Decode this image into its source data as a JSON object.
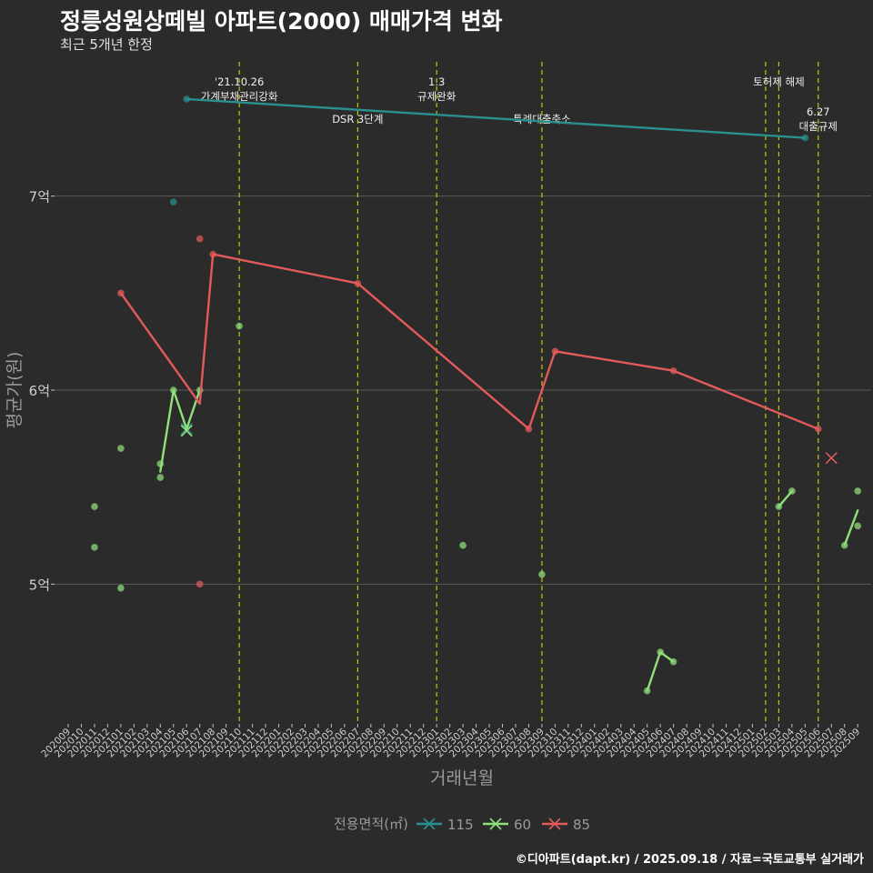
{
  "header": {
    "title": "정릉성원상떼빌 아파트(2000) 매매가격 변화",
    "subtitle": "최근 5개년 한정"
  },
  "footer": {
    "caption": "©디아파트(dapt.kr) / 2025.09.18 / 자료=국토교통부 실거래가"
  },
  "colors": {
    "background": "#2b2b2b",
    "grid": "#5a5a5a",
    "vline": "#d4d400",
    "s115": "#2a8f8f",
    "s60": "#8fe07a",
    "s85": "#e35a5a",
    "axis_text": "#bfbfbf"
  },
  "chart_data": {
    "type": "line",
    "title": "정릉성원상떼빌 아파트(2000) 매매가격 변화",
    "subtitle": "최근 5개년 한정",
    "xlabel": "거래년월",
    "ylabel": "평균가(원)",
    "ylim": [
      4.28,
      7.72
    ],
    "y_ticks": [
      {
        "value": 5,
        "label": "5억"
      },
      {
        "value": 6,
        "label": "6억"
      },
      {
        "value": 7,
        "label": "7억"
      }
    ],
    "categories": [
      "202009",
      "202010",
      "202011",
      "202012",
      "202101",
      "202102",
      "202103",
      "202104",
      "202105",
      "202106",
      "202107",
      "202108",
      "202109",
      "202110",
      "202111",
      "202112",
      "202201",
      "202202",
      "202203",
      "202204",
      "202205",
      "202206",
      "202207",
      "202208",
      "202209",
      "202210",
      "202211",
      "202212",
      "202301",
      "202302",
      "202303",
      "202304",
      "202305",
      "202306",
      "202307",
      "202308",
      "202309",
      "202310",
      "202311",
      "202312",
      "202401",
      "202402",
      "202403",
      "202404",
      "202405",
      "202406",
      "202407",
      "202408",
      "202409",
      "202410",
      "202411",
      "202412",
      "202501",
      "202502",
      "202503",
      "202504",
      "202505",
      "202506",
      "202507",
      "202508",
      "202509"
    ],
    "legend": {
      "title": "전용면적(㎡)",
      "entries": [
        "115",
        "60",
        "85"
      ],
      "placement": "bottom"
    },
    "events": [
      {
        "month": "202110",
        "label": "'21.10.26 가계부채관리강화",
        "lines": [
          "'21.10.26",
          "가계부채관리강화"
        ],
        "row": "top"
      },
      {
        "month": "202207",
        "label": "DSR 3단계",
        "lines": [
          "DSR 3단계"
        ],
        "row": "low"
      },
      {
        "month": "202301",
        "label": "1.3 규제완화",
        "lines": [
          "1.3",
          "규제완화"
        ],
        "row": "top"
      },
      {
        "month": "202309",
        "label": "특례대출축소",
        "lines": [
          "특례대출축소"
        ],
        "row": "low"
      },
      {
        "month": "202502",
        "label": "",
        "lines": [],
        "row": "top"
      },
      {
        "month": "202503",
        "label": "토허제 해제",
        "lines": [
          "토허제 해제"
        ],
        "row": "top"
      },
      {
        "month": "202506",
        "label": "6.27 대출규제",
        "lines": [
          "6.27",
          "대출규제"
        ],
        "row": "mid"
      }
    ],
    "series": [
      {
        "name": "115",
        "color_key": "s115",
        "line": [
          [
            "202106",
            7.5
          ],
          [
            "202505",
            7.3
          ]
        ],
        "points": [
          [
            "202105",
            6.97
          ],
          [
            "202106",
            7.5
          ],
          [
            "202505",
            7.3
          ]
        ],
        "cross": [
          [
            "202106",
            5.8
          ]
        ]
      },
      {
        "name": "60",
        "color_key": "s60",
        "line_segments": [
          [
            [
              "202104",
              5.58
            ],
            [
              "202105",
              6.0
            ],
            [
              "202106",
              5.8
            ],
            [
              "202107",
              6.0
            ]
          ],
          [
            [
              "202405",
              4.45
            ],
            [
              "202406",
              4.65
            ],
            [
              "202407",
              4.6
            ]
          ],
          [
            [
              "202503",
              5.4
            ],
            [
              "202504",
              5.48
            ]
          ],
          [
            [
              "202508",
              5.2
            ],
            [
              "202509",
              5.38
            ]
          ]
        ],
        "points": [
          [
            "202011",
            5.4
          ],
          [
            "202011",
            5.19
          ],
          [
            "202101",
            5.7
          ],
          [
            "202101",
            4.98
          ],
          [
            "202104",
            5.62
          ],
          [
            "202104",
            5.55
          ],
          [
            "202105",
            6.0
          ],
          [
            "202107",
            6.0
          ],
          [
            "202110",
            6.33
          ],
          [
            "202303",
            5.2
          ],
          [
            "202309",
            5.05
          ],
          [
            "202405",
            4.45
          ],
          [
            "202406",
            4.65
          ],
          [
            "202407",
            4.6
          ],
          [
            "202503",
            5.4
          ],
          [
            "202504",
            5.48
          ],
          [
            "202508",
            5.2
          ],
          [
            "202509",
            5.3
          ],
          [
            "202509",
            5.48
          ]
        ],
        "cross": [
          [
            "202106",
            5.79
          ]
        ]
      },
      {
        "name": "85",
        "color_key": "s85",
        "line": [
          [
            "202101",
            6.5
          ],
          [
            "202107",
            5.93
          ],
          [
            "202108",
            6.7
          ],
          [
            "202207",
            6.55
          ],
          [
            "202308",
            5.8
          ],
          [
            "202310",
            6.2
          ],
          [
            "202407",
            6.1
          ],
          [
            "202506",
            5.8
          ]
        ],
        "points": [
          [
            "202101",
            6.5
          ],
          [
            "202107",
            6.78
          ],
          [
            "202107",
            5.0
          ],
          [
            "202108",
            6.7
          ],
          [
            "202207",
            6.55
          ],
          [
            "202308",
            5.8
          ],
          [
            "202310",
            6.2
          ],
          [
            "202407",
            6.1
          ],
          [
            "202506",
            5.8
          ]
        ],
        "cross": [
          [
            "202507",
            5.65
          ]
        ]
      }
    ]
  }
}
